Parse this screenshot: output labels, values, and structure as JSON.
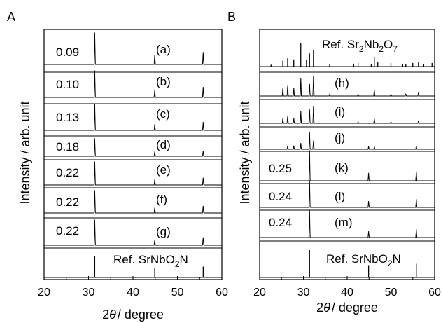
{
  "figure": {
    "panels": [
      {
        "panel_label": "A",
        "ylabel": "Intensity / arb. unit",
        "xlabel_prefix": "2",
        "xlabel_theta": "θ",
        "xlabel_suffix": "/ degree",
        "xticks": [
          "20",
          "30",
          "40",
          "50",
          "60"
        ],
        "rows": [
          {
            "label": "(a)",
            "value": "0.09"
          },
          {
            "label": "(b)",
            "value": "0.10"
          },
          {
            "label": "(c)",
            "value": "0.13"
          },
          {
            "label": "(d)",
            "value": "0.18"
          },
          {
            "label": "(e)",
            "value": "0.22"
          },
          {
            "label": "(f)",
            "value": "0.22"
          },
          {
            "label": "(g)",
            "value": "0.22"
          }
        ],
        "ref": {
          "prefix": "Ref. SrNbO",
          "sub1": "2",
          "mid": "N"
        }
      },
      {
        "panel_label": "B",
        "ylabel": "Intensity / arb. unit",
        "xlabel_prefix": "2",
        "xlabel_theta": "θ",
        "xlabel_suffix": "/ degree",
        "xticks": [
          "20",
          "30",
          "40",
          "50",
          "60"
        ],
        "ref_top": {
          "prefix": "Ref. Sr",
          "sub1": "2",
          "mid": "Nb",
          "sub2": "2",
          "tail": "O",
          "sub3": "7"
        },
        "rows": [
          {
            "label": "(h)",
            "value": ""
          },
          {
            "label": "(i)",
            "value": ""
          },
          {
            "label": "(j)",
            "value": ""
          },
          {
            "label": "(k)",
            "value": "0.25"
          },
          {
            "label": "(l)",
            "value": "0.24"
          },
          {
            "label": "(m)",
            "value": "0.24"
          }
        ],
        "ref": {
          "prefix": "Ref. SrNbO",
          "sub1": "2",
          "mid": "N"
        }
      }
    ]
  },
  "chart_data": [
    {
      "type": "line",
      "title": "A",
      "xlabel": "2θ / degree",
      "ylabel": "Intensity / arb. unit",
      "xlim": [
        20,
        60
      ],
      "y_scale": "arbitrary, traces vertically offset",
      "series": [
        {
          "name": "(a)",
          "peaks": [
            {
              "x": 31.4,
              "y": 1.0
            },
            {
              "x": 44.9,
              "y": 0.3
            },
            {
              "x": 55.8,
              "y": 0.38
            }
          ]
        },
        {
          "name": "(b)",
          "peaks": [
            {
              "x": 31.4,
              "y": 1.0
            },
            {
              "x": 44.9,
              "y": 0.28
            },
            {
              "x": 55.8,
              "y": 0.38
            }
          ]
        },
        {
          "name": "(c)",
          "peaks": [
            {
              "x": 31.4,
              "y": 1.0
            },
            {
              "x": 44.9,
              "y": 0.22
            },
            {
              "x": 55.8,
              "y": 0.3
            }
          ]
        },
        {
          "name": "(d)",
          "peaks": [
            {
              "x": 31.4,
              "y": 1.0
            },
            {
              "x": 44.9,
              "y": 0.25
            },
            {
              "x": 55.8,
              "y": 0.3
            }
          ]
        },
        {
          "name": "(e)",
          "peaks": [
            {
              "x": 31.4,
              "y": 1.0
            },
            {
              "x": 44.9,
              "y": 0.22
            },
            {
              "x": 55.8,
              "y": 0.3
            }
          ]
        },
        {
          "name": "(f)",
          "peaks": [
            {
              "x": 31.4,
              "y": 1.0
            },
            {
              "x": 44.9,
              "y": 0.22
            },
            {
              "x": 55.8,
              "y": 0.3
            }
          ]
        },
        {
          "name": "(g)",
          "peaks": [
            {
              "x": 31.4,
              "y": 1.0
            },
            {
              "x": 44.9,
              "y": 0.2
            },
            {
              "x": 55.8,
              "y": 0.3
            }
          ]
        },
        {
          "name": "Ref. SrNbO2N",
          "ticks": [
            {
              "x": 31.4,
              "y": 1.0
            },
            {
              "x": 44.9,
              "y": 0.45
            },
            {
              "x": 55.8,
              "y": 0.5
            }
          ]
        }
      ]
    },
    {
      "type": "line",
      "title": "B",
      "xlabel": "2θ / degree",
      "ylabel": "Intensity / arb. unit",
      "xlim": [
        20,
        60
      ],
      "y_scale": "arbitrary, traces vertically offset",
      "series": [
        {
          "name": "Ref. Sr2Nb2O7",
          "ticks": [
            {
              "x": 22.6,
              "y": 0.08
            },
            {
              "x": 25.3,
              "y": 0.25
            },
            {
              "x": 26.4,
              "y": 0.35
            },
            {
              "x": 27.8,
              "y": 0.3
            },
            {
              "x": 29.4,
              "y": 1.0
            },
            {
              "x": 30.7,
              "y": 0.3
            },
            {
              "x": 31.4,
              "y": 0.55
            },
            {
              "x": 32.3,
              "y": 0.7
            },
            {
              "x": 36.0,
              "y": 0.1
            },
            {
              "x": 41.5,
              "y": 0.12
            },
            {
              "x": 42.5,
              "y": 0.15
            },
            {
              "x": 45.5,
              "y": 0.1
            },
            {
              "x": 46.2,
              "y": 0.4
            },
            {
              "x": 47.0,
              "y": 0.2
            },
            {
              "x": 50.0,
              "y": 0.15
            },
            {
              "x": 52.7,
              "y": 0.12
            },
            {
              "x": 53.4,
              "y": 0.12
            },
            {
              "x": 55.0,
              "y": 0.15
            },
            {
              "x": 56.3,
              "y": 0.2
            },
            {
              "x": 57.5,
              "y": 0.1
            },
            {
              "x": 59.4,
              "y": 0.15
            }
          ]
        },
        {
          "name": "(h)",
          "peaks": [
            {
              "x": 25.3,
              "y": 0.4
            },
            {
              "x": 26.4,
              "y": 0.5
            },
            {
              "x": 27.8,
              "y": 0.4
            },
            {
              "x": 29.4,
              "y": 0.9
            },
            {
              "x": 31.4,
              "y": 0.6
            },
            {
              "x": 32.3,
              "y": 1.0
            },
            {
              "x": 36.0,
              "y": 0.1
            },
            {
              "x": 42.5,
              "y": 0.1
            },
            {
              "x": 46.2,
              "y": 0.3
            },
            {
              "x": 50.0,
              "y": 0.1
            },
            {
              "x": 53.4,
              "y": 0.1
            },
            {
              "x": 56.3,
              "y": 0.2
            }
          ]
        },
        {
          "name": "(i)",
          "peaks": [
            {
              "x": 25.3,
              "y": 0.3
            },
            {
              "x": 26.4,
              "y": 0.4
            },
            {
              "x": 27.8,
              "y": 0.3
            },
            {
              "x": 29.4,
              "y": 0.7
            },
            {
              "x": 31.4,
              "y": 0.8
            },
            {
              "x": 32.3,
              "y": 1.0
            },
            {
              "x": 42.5,
              "y": 0.1
            },
            {
              "x": 46.2,
              "y": 0.25
            },
            {
              "x": 50.0,
              "y": 0.1
            },
            {
              "x": 56.3,
              "y": 0.15
            }
          ]
        },
        {
          "name": "(j)",
          "peaks": [
            {
              "x": 26.4,
              "y": 0.2
            },
            {
              "x": 27.8,
              "y": 0.2
            },
            {
              "x": 29.4,
              "y": 0.35
            },
            {
              "x": 31.4,
              "y": 1.0
            },
            {
              "x": 32.3,
              "y": 0.5
            },
            {
              "x": 44.9,
              "y": 0.15
            },
            {
              "x": 46.2,
              "y": 0.15
            },
            {
              "x": 55.8,
              "y": 0.2
            }
          ]
        },
        {
          "name": "(k)",
          "peaks": [
            {
              "x": 31.4,
              "y": 1.0
            },
            {
              "x": 44.9,
              "y": 0.25
            },
            {
              "x": 55.8,
              "y": 0.3
            }
          ]
        },
        {
          "name": "(l)",
          "peaks": [
            {
              "x": 31.4,
              "y": 1.0
            },
            {
              "x": 44.9,
              "y": 0.22
            },
            {
              "x": 55.8,
              "y": 0.3
            }
          ]
        },
        {
          "name": "(m)",
          "peaks": [
            {
              "x": 31.4,
              "y": 1.0
            },
            {
              "x": 44.9,
              "y": 0.22
            },
            {
              "x": 55.8,
              "y": 0.3
            }
          ]
        },
        {
          "name": "Ref. SrNbO2N",
          "ticks": [
            {
              "x": 31.4,
              "y": 1.0
            },
            {
              "x": 44.9,
              "y": 0.45
            },
            {
              "x": 55.8,
              "y": 0.5
            }
          ]
        }
      ]
    }
  ]
}
